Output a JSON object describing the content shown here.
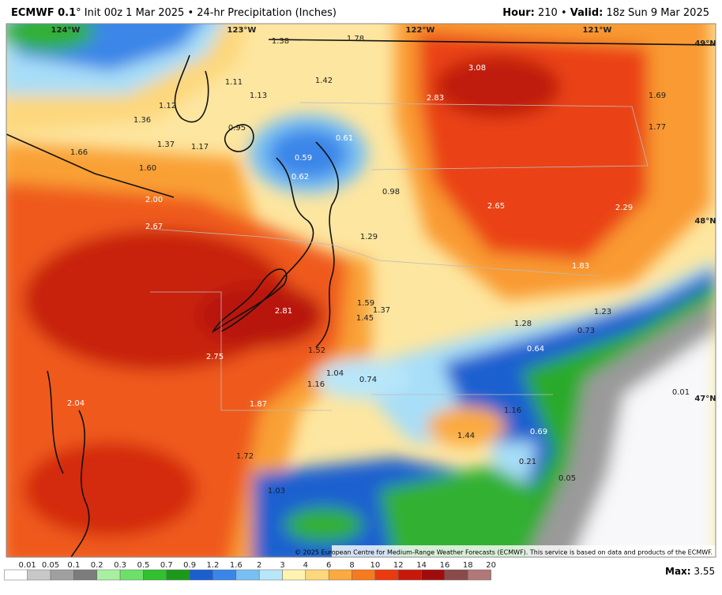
{
  "header": {
    "model": "ECMWF 0.1",
    "title": "° Init 00z 1 Mar 2025 • 24-hr Precipitation (Inches)",
    "hour_label": "Hour:",
    "hour": "210",
    "separator": "•",
    "valid_label": "Valid:",
    "valid": "18z Sun 9 Mar 2025"
  },
  "grid_labels": [
    "124°W",
    "123°W",
    "122°W",
    "121°W",
    "49°N",
    "48°N",
    "47°N"
  ],
  "points": [
    "1.38",
    "1.78",
    "3.08",
    "2.83",
    "1.69",
    "1.77",
    "1.42",
    "1.11",
    "1.13",
    "1.12",
    "1.36",
    "0.95",
    "0.61",
    "1.37",
    "1.17",
    "1.66",
    "0.59",
    "1.60",
    "0.62",
    "0.98",
    "2.00",
    "2.65",
    "2.29",
    "2.67",
    "1.29",
    "1.83",
    "1.59",
    "1.37",
    "2.81",
    "1.23",
    "1.45",
    "1.28",
    "0.73",
    "0.64",
    "1.52",
    "2.75",
    "1.04",
    "0.74",
    "1.16",
    "0.01",
    "2.04",
    "1.87",
    "1.16",
    "1.44",
    "0.69",
    "1.72",
    "0.21",
    "0.05",
    "1.03"
  ],
  "copyright": "© 2025 European Centre for Medium-Range Weather Forecasts (ECMWF). This service is based on data and products of the ECMWF.",
  "legend": {
    "levels": [
      "0.01",
      "0.05",
      "0.1",
      "0.2",
      "0.3",
      "0.5",
      "0.7",
      "0.9",
      "1.2",
      "1.6",
      "2",
      "3",
      "4",
      "6",
      "8",
      "10",
      "12",
      "14",
      "16",
      "18",
      "20"
    ],
    "colors": [
      "#ffffff",
      "#c8c8c8",
      "#a0a0a0",
      "#7c7c7c",
      "#a8f0a0",
      "#6ee06a",
      "#30c030",
      "#1a9a1a",
      "#1a5fd0",
      "#3a86e8",
      "#78c0f4",
      "#b8e6fa",
      "#fff3b0",
      "#fdd77c",
      "#fbaa40",
      "#f77a1e",
      "#ea3a10",
      "#c8180a",
      "#a00c0c",
      "#8a4a4a",
      "#b07878",
      "#c8a0a0",
      "#705090",
      "#9070b0",
      "#800080",
      "#b000b0",
      "#e020e0"
    ]
  },
  "max_label": "Max:",
  "max": "3.55"
}
